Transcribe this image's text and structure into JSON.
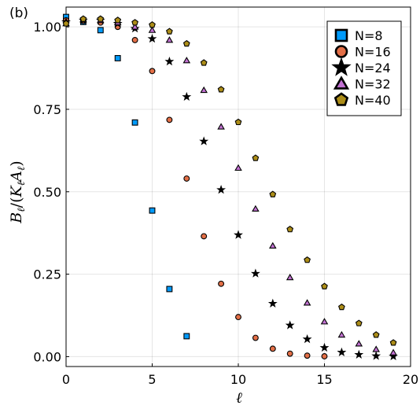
{
  "chart_data": {
    "type": "scatter",
    "panel_label": "(b)",
    "title": "",
    "xlabel": "ℓ",
    "ylabel": "B_ℓ/(K_ℓ A_ℓ)",
    "xlim": [
      0,
      20
    ],
    "ylim": [
      -0.03,
      1.06
    ],
    "xticks": [
      0,
      5,
      10,
      15,
      20
    ],
    "xtick_labels": [
      "0",
      "5",
      "10",
      "15",
      "20"
    ],
    "yticks": [
      0.0,
      0.25,
      0.5,
      0.75,
      1.0
    ],
    "ytick_labels": [
      "0.00",
      "0.25",
      "0.50",
      "0.75",
      "1.00"
    ],
    "grid": true,
    "legend_position": "top-right",
    "series": [
      {
        "name": "N=8",
        "marker": "square",
        "color": "#009AFA",
        "x": [
          0,
          1,
          2,
          3,
          4,
          5,
          6,
          7
        ],
        "y": [
          1.03,
          1.015,
          0.99,
          0.905,
          0.71,
          0.443,
          0.205,
          0.062
        ]
      },
      {
        "name": "N=16",
        "marker": "circle",
        "color": "#E36F47",
        "x": [
          0,
          1,
          2,
          3,
          4,
          5,
          6,
          7,
          8,
          9,
          10,
          11,
          12,
          13,
          14,
          15
        ],
        "y": [
          1.02,
          1.018,
          1.013,
          1.0,
          0.96,
          0.866,
          0.718,
          0.54,
          0.365,
          0.221,
          0.12,
          0.057,
          0.024,
          0.009,
          0.003,
          0.001
        ]
      },
      {
        "name": "N=24",
        "marker": "star",
        "color": "#000000",
        "x": [
          0,
          1,
          2,
          3,
          4,
          5,
          6,
          7,
          8,
          9,
          10,
          11,
          12,
          13,
          14,
          15,
          16,
          17,
          18,
          19
        ],
        "y": [
          1.015,
          1.02,
          1.02,
          1.01,
          0.995,
          0.964,
          0.895,
          0.788,
          0.653,
          0.506,
          0.369,
          0.252,
          0.161,
          0.095,
          0.053,
          0.027,
          0.013,
          0.006,
          0.002,
          0.001
        ]
      },
      {
        "name": "N=32",
        "marker": "triangle",
        "color": "#C271D2",
        "x": [
          0,
          1,
          2,
          3,
          4,
          5,
          6,
          7,
          8,
          9,
          10,
          11,
          12,
          13,
          14,
          15,
          16,
          17,
          18,
          19
        ],
        "y": [
          1.01,
          1.022,
          1.02,
          1.013,
          1.0,
          0.99,
          0.96,
          0.898,
          0.808,
          0.697,
          0.572,
          0.448,
          0.336,
          0.24,
          0.163,
          0.106,
          0.066,
          0.039,
          0.022,
          0.012
        ]
      },
      {
        "name": "N=40",
        "marker": "pentagon",
        "color": "#AC8D18",
        "x": [
          0,
          1,
          2,
          3,
          4,
          5,
          6,
          7,
          8,
          9,
          10,
          11,
          12,
          13,
          14,
          15,
          16,
          17,
          18,
          19
        ],
        "y": [
          1.01,
          1.024,
          1.024,
          1.02,
          1.013,
          1.006,
          0.986,
          0.949,
          0.891,
          0.81,
          0.711,
          0.602,
          0.492,
          0.386,
          0.293,
          0.213,
          0.15,
          0.101,
          0.066,
          0.042
        ]
      }
    ]
  }
}
